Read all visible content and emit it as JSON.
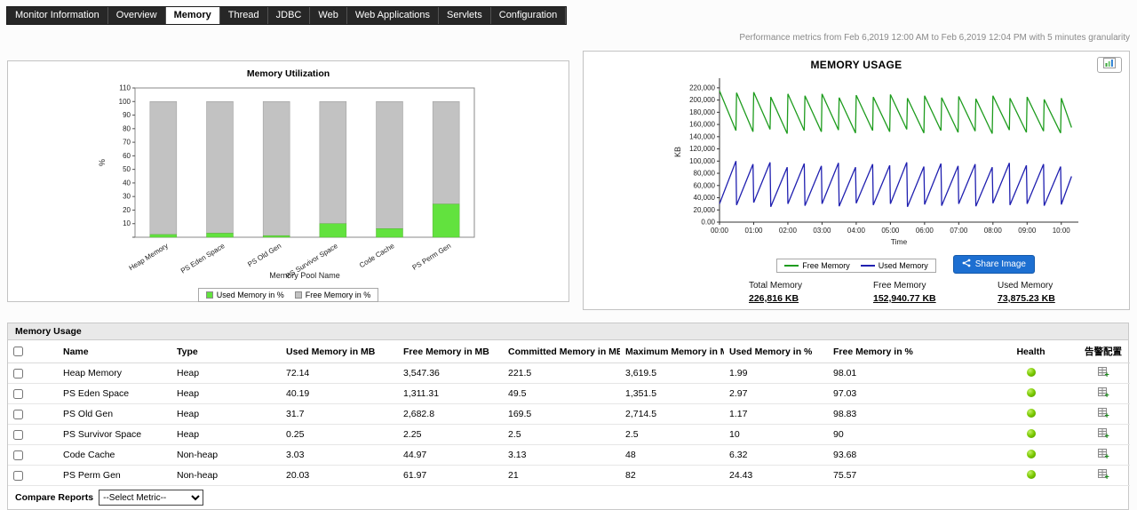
{
  "tabs": {
    "items": [
      {
        "label": "Monitor Information",
        "active": false
      },
      {
        "label": "Overview",
        "active": false
      },
      {
        "label": "Memory",
        "active": true
      },
      {
        "label": "Thread",
        "active": false
      },
      {
        "label": "JDBC",
        "active": false
      },
      {
        "label": "Web",
        "active": false
      },
      {
        "label": "Web Applications",
        "active": false
      },
      {
        "label": "Servlets",
        "active": false
      },
      {
        "label": "Configuration",
        "active": false
      }
    ]
  },
  "header": {
    "metrics_note": "Performance metrics from Feb 6,2019 12:00 AM to Feb 6,2019 12:04 PM with 5 minutes granularity"
  },
  "memory_utilization_panel": {
    "title": "Memory Utilization"
  },
  "memory_usage_panel": {
    "title": "MEMORY USAGE",
    "share_button": "Share Image",
    "stats": {
      "items": [
        {
          "label": "Total Memory",
          "value": "226,816 KB"
        },
        {
          "label": "Free Memory",
          "value": "152,940.77 KB"
        },
        {
          "label": "Used Memory",
          "value": "73,875.23 KB"
        }
      ]
    }
  },
  "chart_data": [
    {
      "type": "bar",
      "title": "Memory Utilization",
      "stacked": true,
      "categories": [
        "Heap Memory",
        "PS Eden Space",
        "PS Old Gen",
        "PS Survivor Space",
        "Code Cache",
        "PS Perm Gen"
      ],
      "series": [
        {
          "name": "Used Memory in %",
          "color": "#62e23e",
          "values": [
            1.99,
            2.97,
            1.17,
            10,
            6.32,
            24.43
          ]
        },
        {
          "name": "Free Memory in %",
          "color": "#c2c2c2",
          "values": [
            98.01,
            97.03,
            98.83,
            90,
            93.68,
            75.57
          ]
        }
      ],
      "xlabel": "Memory Pool Name",
      "ylabel": "%",
      "ylim": [
        0,
        110
      ],
      "ytick_step": 10,
      "legend_position": "bottom",
      "grid": false
    },
    {
      "type": "line",
      "title": "MEMORY USAGE",
      "xlabel": "Time",
      "ylabel": "KB",
      "ylim": [
        0,
        230000
      ],
      "xlim_hours": [
        0,
        10.5
      ],
      "yticks": [
        0,
        20000,
        40000,
        60000,
        80000,
        100000,
        120000,
        140000,
        160000,
        180000,
        200000,
        220000
      ],
      "ytick_labels": [
        "0.00",
        "20,000",
        "40,000",
        "60,000",
        "80,000",
        "100,000",
        "120,000",
        "140,000",
        "160,000",
        "180,000",
        "200,000",
        "220,000"
      ],
      "x_labels": [
        "00:00",
        "01:00",
        "02:00",
        "03:00",
        "04:00",
        "05:00",
        "06:00",
        "07:00",
        "08:00",
        "09:00",
        "10:00"
      ],
      "legend_position": "bottom",
      "grid": false,
      "series": [
        {
          "name": "Free Memory",
          "color": "#1e9c1e",
          "points": [
            [
              0,
              215000
            ],
            [
              0.48,
              150000
            ],
            [
              0.5,
              212000
            ],
            [
              0.98,
              148000
            ],
            [
              1,
              213000
            ],
            [
              1.48,
              152000
            ],
            [
              1.5,
              205000
            ],
            [
              1.98,
              145000
            ],
            [
              2,
              210000
            ],
            [
              2.48,
              150000
            ],
            [
              2.5,
              207000
            ],
            [
              2.98,
              148000
            ],
            [
              3,
              210000
            ],
            [
              3.48,
              151000
            ],
            [
              3.5,
              204000
            ],
            [
              3.98,
              146000
            ],
            [
              4,
              208000
            ],
            [
              4.48,
              150000
            ],
            [
              4.5,
              205000
            ],
            [
              4.98,
              148000
            ],
            [
              5,
              209000
            ],
            [
              5.48,
              152000
            ],
            [
              5.5,
              203000
            ],
            [
              5.98,
              146000
            ],
            [
              6,
              207000
            ],
            [
              6.48,
              150000
            ],
            [
              6.5,
              204000
            ],
            [
              6.98,
              147000
            ],
            [
              7,
              206000
            ],
            [
              7.48,
              149000
            ],
            [
              7.5,
              202000
            ],
            [
              7.98,
              145000
            ],
            [
              8,
              207000
            ],
            [
              8.48,
              151000
            ],
            [
              8.5,
              203000
            ],
            [
              8.98,
              147000
            ],
            [
              9,
              205000
            ],
            [
              9.48,
              149000
            ],
            [
              9.5,
              201000
            ],
            [
              9.98,
              146000
            ],
            [
              10,
              203000
            ],
            [
              10.3,
              155000
            ]
          ]
        },
        {
          "name": "Used Memory",
          "color": "#2020b0",
          "points": [
            [
              0,
              30000
            ],
            [
              0.48,
              100000
            ],
            [
              0.5,
              28000
            ],
            [
              0.98,
              95000
            ],
            [
              1,
              32000
            ],
            [
              1.48,
              98000
            ],
            [
              1.5,
              25000
            ],
            [
              1.98,
              90000
            ],
            [
              2,
              30000
            ],
            [
              2.48,
              96000
            ],
            [
              2.5,
              27000
            ],
            [
              2.98,
              92000
            ],
            [
              3,
              30000
            ],
            [
              3.48,
              97000
            ],
            [
              3.5,
              26000
            ],
            [
              3.98,
              90000
            ],
            [
              4,
              31000
            ],
            [
              4.48,
              95000
            ],
            [
              4.5,
              28000
            ],
            [
              4.98,
              93000
            ],
            [
              5,
              30000
            ],
            [
              5.48,
              98000
            ],
            [
              5.5,
              25000
            ],
            [
              5.98,
              91000
            ],
            [
              6,
              29000
            ],
            [
              6.48,
              96000
            ],
            [
              6.5,
              27000
            ],
            [
              6.98,
              92000
            ],
            [
              7,
              30000
            ],
            [
              7.48,
              95000
            ],
            [
              7.5,
              26000
            ],
            [
              7.98,
              90000
            ],
            [
              8,
              31000
            ],
            [
              8.48,
              97000
            ],
            [
              8.5,
              28000
            ],
            [
              8.98,
              93000
            ],
            [
              9,
              30000
            ],
            [
              9.48,
              95000
            ],
            [
              9.5,
              27000
            ],
            [
              9.98,
              91000
            ],
            [
              10,
              29000
            ],
            [
              10.3,
              75000
            ]
          ]
        }
      ]
    }
  ],
  "table": {
    "section_title": "Memory Usage",
    "columns": [
      "Name",
      "Type",
      "Used Memory in MB",
      "Free Memory in MB",
      "Committed Memory in MB",
      "Maximum Memory in MB",
      "Used Memory in %",
      "Free Memory in %",
      "Health",
      "告警配置"
    ],
    "rows": [
      {
        "name": "Heap Memory",
        "type": "Heap",
        "used_mb": "72.14",
        "free_mb": "3,547.36",
        "committed_mb": "221.5",
        "max_mb": "3,619.5",
        "used_pct": "1.99",
        "free_pct": "98.01"
      },
      {
        "name": "PS Eden Space",
        "type": "Heap",
        "used_mb": "40.19",
        "free_mb": "1,311.31",
        "committed_mb": "49.5",
        "max_mb": "1,351.5",
        "used_pct": "2.97",
        "free_pct": "97.03"
      },
      {
        "name": "PS Old Gen",
        "type": "Heap",
        "used_mb": "31.7",
        "free_mb": "2,682.8",
        "committed_mb": "169.5",
        "max_mb": "2,714.5",
        "used_pct": "1.17",
        "free_pct": "98.83"
      },
      {
        "name": "PS Survivor Space",
        "type": "Heap",
        "used_mb": "0.25",
        "free_mb": "2.25",
        "committed_mb": "2.5",
        "max_mb": "2.5",
        "used_pct": "10",
        "free_pct": "90"
      },
      {
        "name": "Code Cache",
        "type": "Non-heap",
        "used_mb": "3.03",
        "free_mb": "44.97",
        "committed_mb": "3.13",
        "max_mb": "48",
        "used_pct": "6.32",
        "free_pct": "93.68"
      },
      {
        "name": "PS Perm Gen",
        "type": "Non-heap",
        "used_mb": "20.03",
        "free_mb": "61.97",
        "committed_mb": "21",
        "max_mb": "82",
        "used_pct": "24.43",
        "free_pct": "75.57"
      }
    ],
    "health_color": "#6cb500"
  },
  "footer": {
    "compare_label": "Compare Reports",
    "select_value": "--Select Metric--"
  }
}
